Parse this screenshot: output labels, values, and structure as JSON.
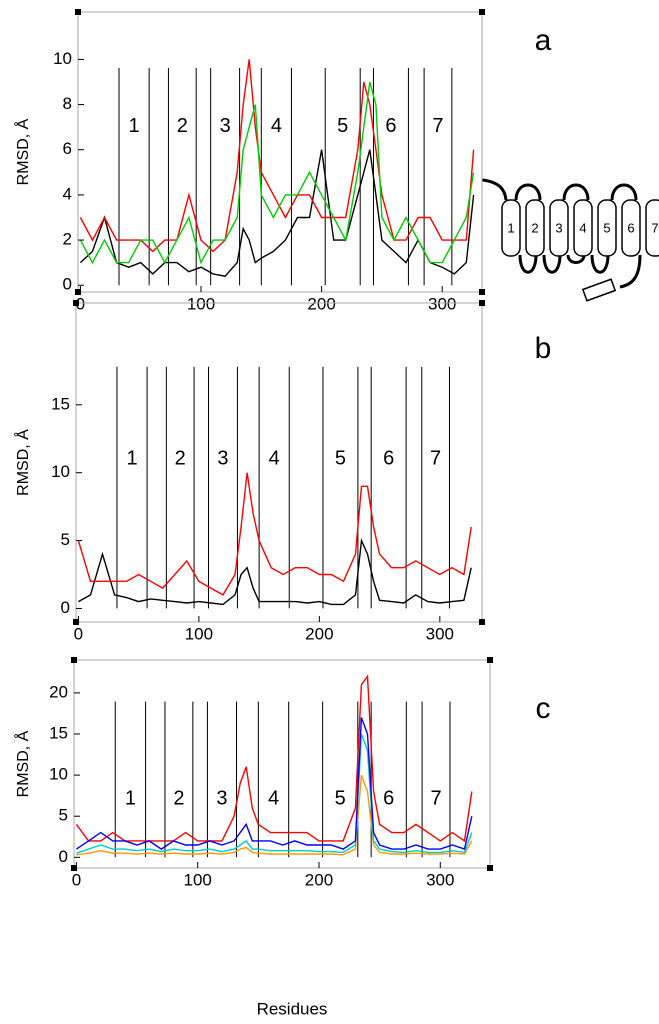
{
  "chart_data": [
    {
      "type": "line",
      "panel_label": "a",
      "ylabel": "RMSD, Å",
      "x": [
        0,
        10,
        20,
        30,
        40,
        50,
        60,
        70,
        80,
        90,
        100,
        110,
        120,
        130,
        135,
        140,
        145,
        150,
        160,
        170,
        180,
        190,
        200,
        210,
        220,
        230,
        235,
        240,
        245,
        250,
        260,
        270,
        280,
        290,
        300,
        310,
        320,
        326
      ],
      "series": [
        {
          "color": "#000000",
          "values": [
            1,
            1.5,
            3,
            1,
            0.8,
            1,
            0.5,
            1,
            1,
            0.6,
            0.8,
            0.5,
            0.4,
            1,
            2.5,
            2,
            1,
            1.2,
            1.5,
            2,
            3,
            3,
            6,
            2,
            2,
            4,
            5,
            6,
            4,
            2,
            1.5,
            1,
            2,
            1,
            0.8,
            0.5,
            1,
            4
          ]
        },
        {
          "color": "#ff0000",
          "values": [
            3,
            2,
            3,
            2,
            2,
            2,
            1.5,
            2,
            2,
            4,
            2,
            1.5,
            2,
            5,
            8,
            10,
            7,
            5,
            4,
            3,
            4,
            4,
            3,
            3,
            3,
            6,
            9,
            8,
            6,
            4,
            2,
            2,
            3,
            3,
            2,
            2,
            2,
            6
          ]
        },
        {
          "color": "#00cc00",
          "values": [
            2,
            1,
            2,
            1,
            1,
            2,
            2,
            1,
            2,
            3,
            1,
            2,
            2,
            3,
            6,
            7,
            8,
            4,
            3,
            4,
            4,
            5,
            4,
            3,
            2,
            5,
            7,
            9,
            8,
            3,
            2,
            3,
            2,
            1,
            1,
            2,
            3,
            5
          ]
        }
      ],
      "xlim": [
        -2,
        333
      ],
      "xticks": [
        0,
        100,
        200,
        300
      ],
      "ylim": [
        -0.3,
        12.1
      ],
      "yticks": [
        0,
        2,
        4,
        6,
        8,
        10
      ],
      "vlines": [
        32,
        57,
        73,
        96,
        108,
        132,
        150,
        175,
        203,
        232,
        243,
        272,
        285,
        308
      ],
      "helix_labels": [
        "1",
        "2",
        "3",
        "4",
        "5",
        "6",
        "7"
      ],
      "inset_labels": [
        "1",
        "2",
        "3",
        "4",
        "5",
        "6",
        "7"
      ]
    },
    {
      "type": "line",
      "panel_label": "b",
      "ylabel": "RMSD, Å",
      "x": [
        0,
        10,
        20,
        30,
        40,
        50,
        60,
        70,
        80,
        90,
        100,
        110,
        120,
        130,
        135,
        140,
        145,
        150,
        160,
        170,
        180,
        190,
        200,
        210,
        220,
        230,
        235,
        240,
        245,
        250,
        260,
        270,
        280,
        290,
        300,
        310,
        320,
        326
      ],
      "series": [
        {
          "color": "#000000",
          "values": [
            0.5,
            1,
            4,
            1,
            0.8,
            0.5,
            0.7,
            0.6,
            0.5,
            0.4,
            0.5,
            0.4,
            0.3,
            1,
            2.5,
            3,
            1.5,
            0.5,
            0.5,
            0.5,
            0.5,
            0.4,
            0.5,
            0.3,
            0.3,
            1,
            5,
            4,
            2,
            0.6,
            0.5,
            0.4,
            1,
            0.5,
            0.4,
            0.5,
            0.6,
            3
          ]
        },
        {
          "color": "#ff0000",
          "values": [
            5,
            2,
            2,
            2,
            2,
            2.5,
            2,
            1.5,
            2.5,
            3.5,
            2,
            1.5,
            1,
            2.5,
            6,
            10,
            7,
            5,
            3,
            2.5,
            3,
            3,
            2.5,
            2.5,
            2,
            4,
            9,
            9,
            6,
            4,
            3,
            3,
            3.5,
            3,
            2.5,
            3,
            2.5,
            6
          ]
        }
      ],
      "xlim": [
        -2,
        335
      ],
      "xticks": [
        0,
        100,
        200,
        300
      ],
      "ylim": [
        -1,
        22.5
      ],
      "yticks": [
        0,
        5,
        10,
        15
      ],
      "vlines": [
        32,
        57,
        73,
        96,
        108,
        132,
        150,
        175,
        203,
        232,
        243,
        272,
        285,
        308
      ],
      "helix_labels": [
        "1",
        "2",
        "3",
        "4",
        "5",
        "6",
        "7"
      ]
    },
    {
      "type": "line",
      "panel_label": "c",
      "ylabel": "RMSD, Å",
      "xlabel": "Residues",
      "x": [
        0,
        10,
        20,
        30,
        40,
        50,
        60,
        70,
        80,
        90,
        100,
        110,
        120,
        130,
        135,
        140,
        145,
        150,
        160,
        170,
        180,
        190,
        200,
        210,
        220,
        230,
        235,
        240,
        245,
        250,
        260,
        270,
        280,
        290,
        300,
        310,
        320,
        326
      ],
      "series": [
        {
          "color": "#ff0000",
          "values": [
            4,
            2,
            2,
            3,
            2,
            2,
            2,
            2,
            2,
            3,
            2,
            2,
            2,
            5,
            9,
            11,
            6,
            4,
            3,
            3,
            3,
            3,
            2,
            2,
            2,
            6,
            21,
            22,
            8,
            4,
            3,
            3,
            4,
            3,
            2,
            3,
            2,
            8
          ]
        },
        {
          "color": "#ff9900",
          "values": [
            0.3,
            0.5,
            0.8,
            0.5,
            0.5,
            0.4,
            0.5,
            0.4,
            0.5,
            0.4,
            0.4,
            0.5,
            0.4,
            0.6,
            1,
            1.2,
            0.6,
            0.5,
            0.4,
            0.4,
            0.4,
            0.4,
            0.4,
            0.4,
            0.3,
            1,
            10,
            8,
            1.5,
            0.6,
            0.4,
            0.4,
            0.5,
            0.4,
            0.4,
            0.5,
            0.4,
            2
          ]
        },
        {
          "color": "#00cccc",
          "values": [
            0.5,
            1,
            1.5,
            1,
            1,
            0.8,
            1,
            0.7,
            1,
            0.8,
            0.8,
            1,
            0.7,
            1,
            1.5,
            2,
            1,
            1,
            0.8,
            0.8,
            0.8,
            0.8,
            0.7,
            0.7,
            0.6,
            1.5,
            15,
            13,
            2,
            1,
            0.7,
            0.6,
            0.8,
            0.6,
            0.6,
            0.8,
            0.6,
            3
          ]
        },
        {
          "color": "#0000ff",
          "values": [
            1,
            2,
            3,
            2,
            2,
            1.5,
            2,
            1,
            2,
            1.5,
            1.5,
            2,
            1.5,
            2,
            3,
            4,
            2,
            2,
            2,
            1.5,
            2,
            1.5,
            1.5,
            1.5,
            1,
            2,
            17,
            15,
            3,
            1.5,
            1,
            1,
            1.5,
            1,
            1,
            1.5,
            1,
            5
          ]
        }
      ],
      "xlim": [
        -2,
        341
      ],
      "xticks": [
        0,
        100,
        200,
        300
      ],
      "ylim": [
        -1.3,
        24
      ],
      "yticks": [
        0,
        5,
        10,
        15,
        20
      ],
      "vlines": [
        32,
        57,
        73,
        96,
        108,
        132,
        150,
        175,
        203,
        232,
        243,
        272,
        285,
        308
      ],
      "helix_labels": [
        "1",
        "2",
        "3",
        "4",
        "5",
        "6",
        "7"
      ]
    }
  ]
}
